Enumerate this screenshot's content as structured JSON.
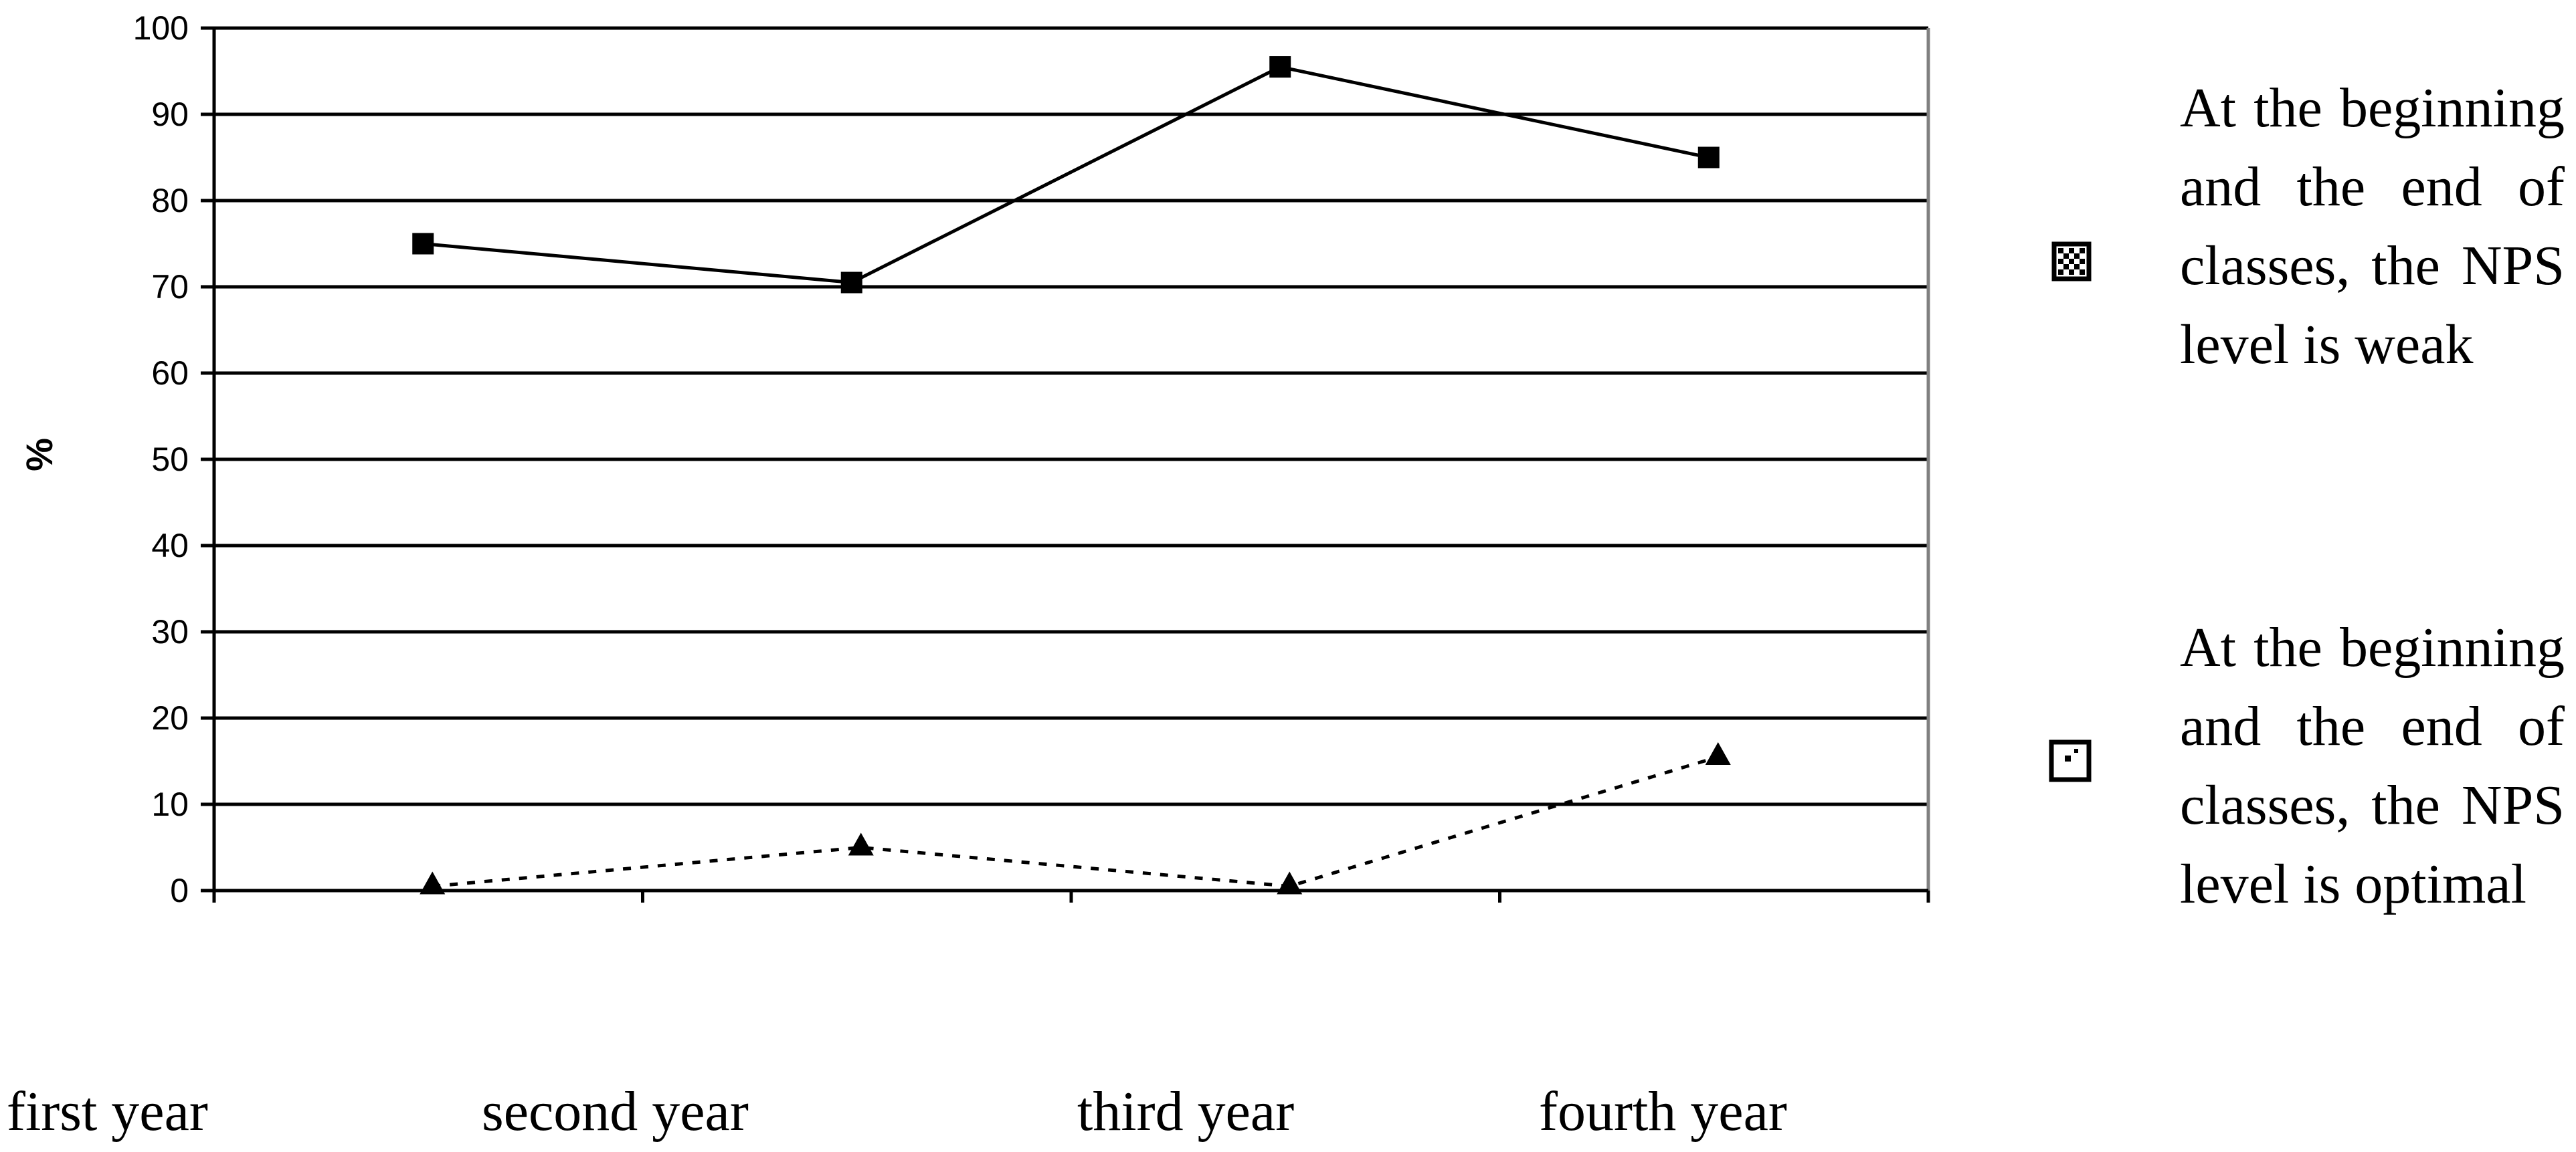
{
  "chart_data": {
    "type": "line",
    "title": "",
    "xlabel": "",
    "ylabel": "%",
    "ylim": [
      0,
      100
    ],
    "yticks": [
      0,
      10,
      20,
      30,
      40,
      50,
      60,
      70,
      80,
      90,
      100
    ],
    "categories": [
      "first year",
      "second year",
      "third year",
      "fourth year"
    ],
    "grid": true,
    "legend_position": "right",
    "series": [
      {
        "name": "At the beginning and the end of classes, the NPS level is weak",
        "values": [
          75,
          70.5,
          95.5,
          85
        ],
        "marker": "square",
        "line_style": "solid",
        "legend_icon": "checkered-square-icon"
      },
      {
        "name": "At the beginning and the end of classes, the NPS level is optimal",
        "values": [
          0.5,
          5,
          0.5,
          15.5
        ],
        "marker": "triangle",
        "line_style": "dotted",
        "legend_icon": "dotted-square-icon"
      }
    ],
    "colors": {
      "line": "#000000",
      "grid": "#000000",
      "plot_border": "#808080"
    }
  }
}
